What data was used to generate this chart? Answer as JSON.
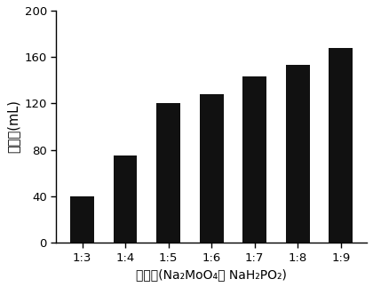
{
  "categories": [
    "1:3",
    "1:4",
    "1:5",
    "1:6",
    "1:7",
    "1:8",
    "1:9"
  ],
  "values": [
    40,
    75,
    120,
    128,
    143,
    153,
    168
  ],
  "bar_color": "#111111",
  "ylabel": "产氢量(mL)",
  "xlabel": "摸尔比(Na₂MoO₄： NaH₂PO₂)",
  "ylim": [
    0,
    200
  ],
  "yticks": [
    0,
    40,
    80,
    120,
    160,
    200
  ],
  "background_color": "#ffffff",
  "bar_width": 0.55
}
